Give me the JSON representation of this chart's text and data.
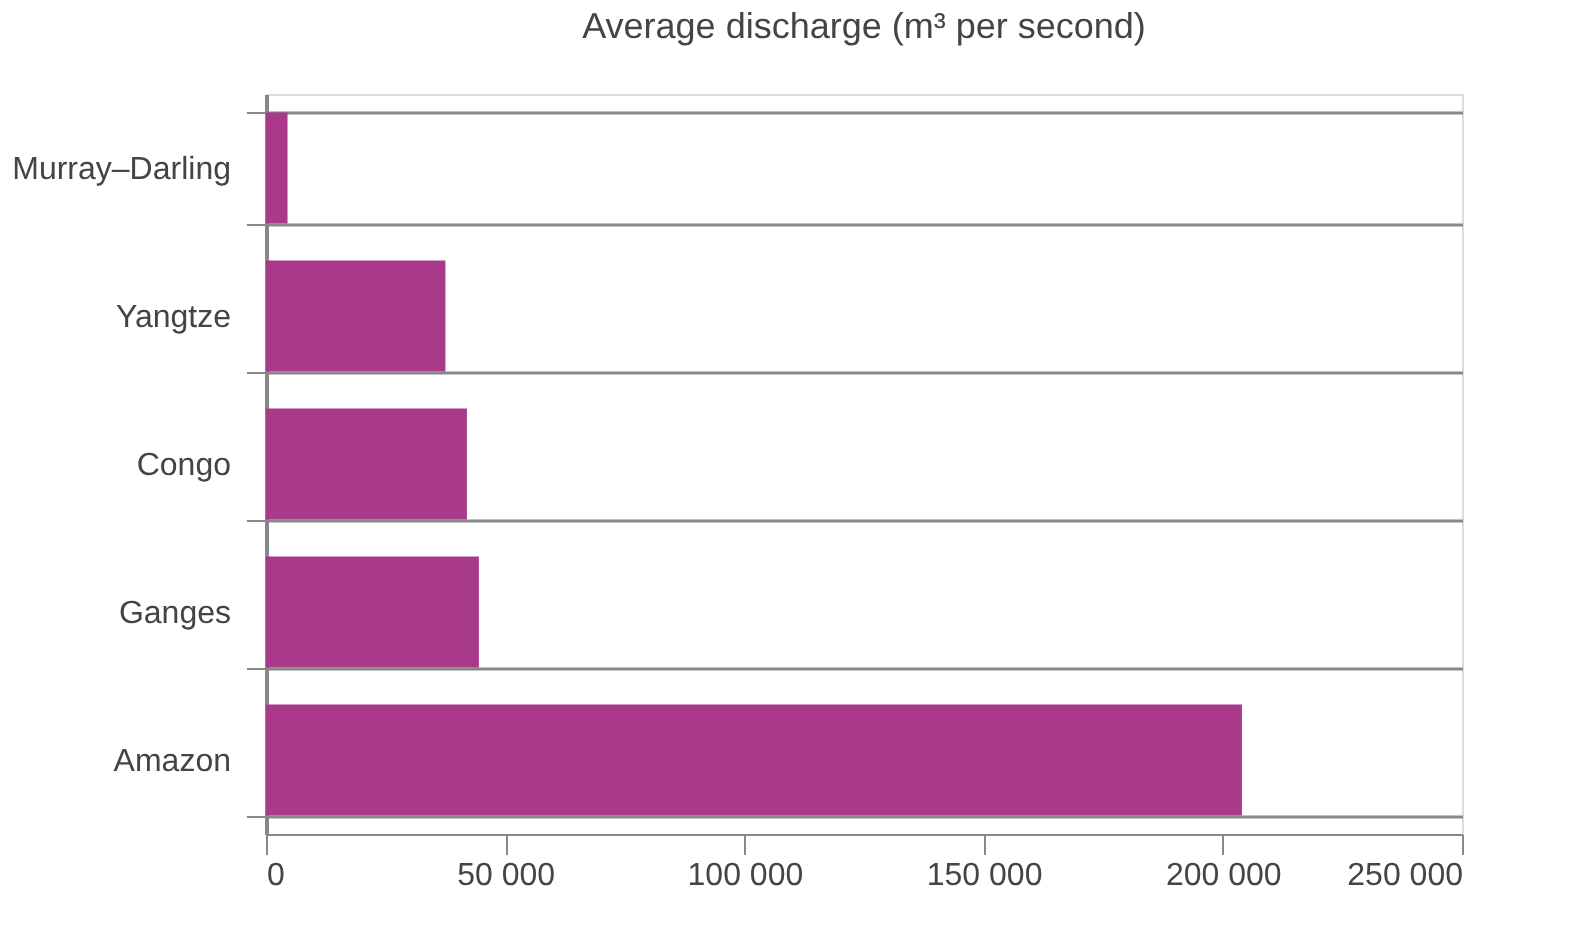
{
  "chart_data": {
    "type": "bar",
    "orientation": "horizontal",
    "title": "Average discharge (m³ per second)",
    "categories": [
      "Murray–Darling",
      "Yangtze",
      "Congo",
      "Ganges",
      "Amazon"
    ],
    "values": [
      4500,
      37500,
      42000,
      44500,
      204000
    ],
    "color": "#a93a8b",
    "xlim": [
      0,
      250000
    ],
    "xticks": [
      0,
      {
        "value": 50000,
        "label": "50 000"
      },
      {
        "value": 100000,
        "label": "100 000"
      },
      {
        "value": 150000,
        "label": "150 000"
      },
      {
        "value": 200000,
        "label": "200 000"
      },
      {
        "value": 250000,
        "label": "250 000"
      }
    ],
    "grid": "y"
  }
}
